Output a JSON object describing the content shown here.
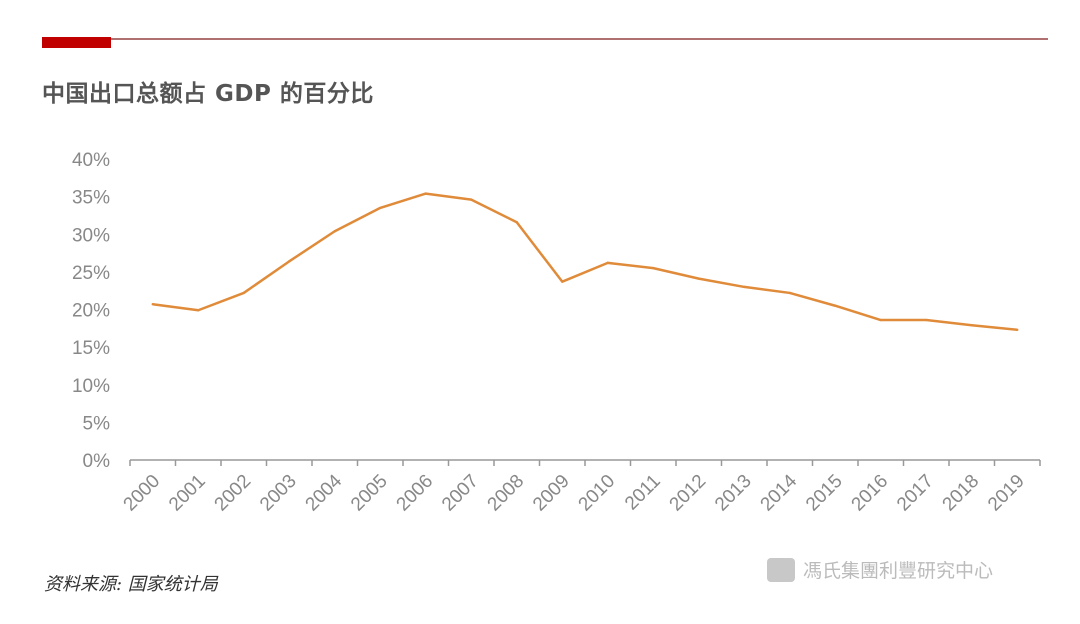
{
  "header": {
    "title": "中国出口总额占 GDP 的百分比",
    "accent_color": "#c00000"
  },
  "chart_data": {
    "type": "line",
    "title": "中国出口总额占 GDP 的百分比",
    "categories": [
      "2000",
      "2001",
      "2002",
      "2003",
      "2004",
      "2005",
      "2006",
      "2007",
      "2008",
      "2009",
      "2010",
      "2011",
      "2012",
      "2013",
      "2014",
      "2015",
      "2016",
      "2017",
      "2018",
      "2019"
    ],
    "series": [
      {
        "values": [
          20.7,
          19.9,
          22.2,
          26.4,
          30.4,
          33.5,
          35.4,
          34.6,
          31.6,
          23.7,
          26.2,
          25.5,
          24.1,
          23.0,
          22.2,
          20.5,
          18.6,
          18.6,
          17.9,
          17.3
        ],
        "color": "#e08b3a"
      }
    ],
    "yticks": [
      "0%",
      "5%",
      "10%",
      "15%",
      "20%",
      "25%",
      "30%",
      "35%",
      "40%"
    ],
    "ylim": [
      0,
      40
    ],
    "grid": false,
    "xlabel": "",
    "ylabel": ""
  },
  "footer": {
    "source": "资料来源: 国家统计局",
    "watermark": "馮氏集團利豐研究中心"
  }
}
